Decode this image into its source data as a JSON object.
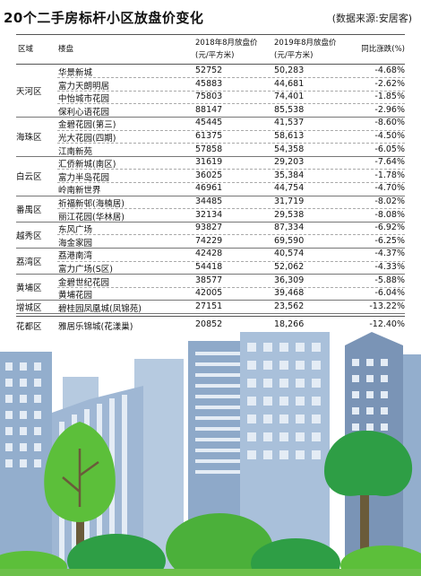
{
  "title": "20个二手房标杆小区放盘价变化",
  "source": "(数据来源:安居客)",
  "headers": {
    "district": "区域",
    "estate": "楼盘",
    "price2018_line1": "2018年8月放盘价",
    "price2018_line2": "(元/平方米)",
    "price2019_line1": "2019年8月放盘价",
    "price2019_line2": "(元/平方米)",
    "change": "同比涨跌(%)"
  },
  "districts": [
    {
      "name": "天河区",
      "rows": [
        {
          "estate": "华景新城",
          "p2018": "52752",
          "p2019": "50,283",
          "change": "-4.68%"
        },
        {
          "estate": "富力天朗明居",
          "p2018": "45883",
          "p2019": "44,681",
          "change": "-2.62%"
        },
        {
          "estate": "中怡城市花园",
          "p2018": "75803",
          "p2019": "74,401",
          "change": "-1.85%"
        },
        {
          "estate": "保利心语花园",
          "p2018": "88147",
          "p2019": "85,538",
          "change": "-2.96%"
        }
      ]
    },
    {
      "name": "海珠区",
      "rows": [
        {
          "estate": "金碧花园(第三)",
          "p2018": "45445",
          "p2019": "41,537",
          "change": "-8.60%"
        },
        {
          "estate": "光大花园(四期)",
          "p2018": "61375",
          "p2019": "58,613",
          "change": "-4.50%"
        },
        {
          "estate": "江南新苑",
          "p2018": "57858",
          "p2019": "54,358",
          "change": "-6.05%"
        }
      ]
    },
    {
      "name": "白云区",
      "rows": [
        {
          "estate": "汇侨新城(南区)",
          "p2018": "31619",
          "p2019": "29,203",
          "change": "-7.64%"
        },
        {
          "estate": "富力半岛花园",
          "p2018": "36025",
          "p2019": "35,384",
          "change": "-1.78%"
        },
        {
          "estate": "岭南新世界",
          "p2018": "46961",
          "p2019": "44,754",
          "change": "-4.70%"
        }
      ]
    },
    {
      "name": "番禺区",
      "rows": [
        {
          "estate": "祈福新邨(海楠居)",
          "p2018": "34485",
          "p2019": "31,719",
          "change": "-8.02%"
        },
        {
          "estate": "丽江花园(华林居)",
          "p2018": "32134",
          "p2019": "29,538",
          "change": "-8.08%"
        }
      ]
    },
    {
      "name": "越秀区",
      "rows": [
        {
          "estate": "东风广场",
          "p2018": "93827",
          "p2019": "87,334",
          "change": "-6.92%"
        },
        {
          "estate": "海金家园",
          "p2018": "74229",
          "p2019": "69,590",
          "change": "-6.25%"
        }
      ]
    },
    {
      "name": "荔湾区",
      "rows": [
        {
          "estate": "荔港南湾",
          "p2018": "42428",
          "p2019": "40,574",
          "change": "-4.37%"
        },
        {
          "estate": "富力广场(S区)",
          "p2018": "54418",
          "p2019": "52,062",
          "change": "-4.33%"
        }
      ]
    },
    {
      "name": "黄埔区",
      "rows": [
        {
          "estate": "金碧世纪花园",
          "p2018": "38577",
          "p2019": "36,309",
          "change": "-5.88%"
        },
        {
          "estate": "黄埔花园",
          "p2018": "42005",
          "p2019": "39,468",
          "change": "-6.04%"
        }
      ]
    },
    {
      "name": "增城区",
      "rows": [
        {
          "estate": "碧桂园凤凰城(凤锦苑)",
          "p2018": "27151",
          "p2019": "23,562",
          "change": "-13.22%"
        }
      ]
    },
    {
      "name": "花都区",
      "rows": [
        {
          "estate": "雅居乐锦城(花漾巢)",
          "p2018": "20852",
          "p2019": "18,266",
          "change": "-12.40%"
        }
      ]
    }
  ],
  "colors": {
    "sky": "#ffffff",
    "building_light": "#a9c0da",
    "building_mid": "#8ea9c9",
    "building_dark": "#7a94b6",
    "window": "#e4ecf5",
    "tree_leaf": "#2e9e45",
    "tree_leaf_light": "#5cbf3a",
    "trunk": "#6a5b3a",
    "ground": "#6cc04a"
  }
}
